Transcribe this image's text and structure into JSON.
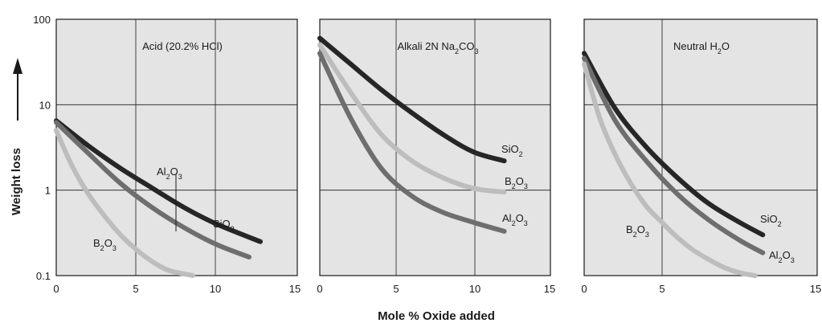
{
  "chart_data": {
    "type": "line",
    "y_axis_label": "Weight loss",
    "x_axis_label": "Mole % Oxide added",
    "y_scale": "log",
    "y_ticks": [
      "100",
      "10",
      "1",
      "0.1"
    ],
    "ylim": [
      0.1,
      100
    ],
    "grid": true,
    "colors": {
      "SiO2": "#262626",
      "Al2O3": "#6e6e6e",
      "B2O3": "#bdbdbd",
      "panel_bg": "#e4e4e4"
    },
    "panels": [
      {
        "title": "Acid (20.2% HCl)",
        "x_ticks": [
          "0",
          "5",
          "10",
          "15"
        ],
        "xlim": [
          0,
          15
        ],
        "series": [
          {
            "name": "SiO2",
            "name_main": "SiO",
            "name_sub": "2",
            "color": "#262626",
            "x": [
              0,
              2,
              4,
              6,
              8,
              10,
              12.7
            ],
            "y": [
              6.5,
              3.3,
              1.8,
              1.05,
              0.62,
              0.4,
              0.25
            ]
          },
          {
            "name": "Al2O3",
            "name_main": "Al",
            "name_sub": "2",
            "name_main2": "O",
            "name_sub2": "3",
            "color": "#6e6e6e",
            "x": [
              0,
              2,
              4,
              6,
              8,
              10,
              12
            ],
            "y": [
              6.2,
              2.7,
              1.2,
              0.62,
              0.36,
              0.23,
              0.165
            ]
          },
          {
            "name": "B2O3",
            "name_main": "B",
            "name_sub": "2",
            "name_main2": "O",
            "name_sub2": "3",
            "color": "#bdbdbd",
            "x": [
              0,
              1,
              2,
              3,
              4,
              5,
              6,
              7,
              8.5
            ],
            "y": [
              5.0,
              1.9,
              0.9,
              0.5,
              0.3,
              0.2,
              0.145,
              0.115,
              0.1
            ]
          }
        ]
      },
      {
        "title": "Alkali 2N Na2CO3",
        "title_parts": [
          "Alkali 2N Na",
          "2",
          "CO",
          "3"
        ],
        "x_ticks": [
          "0",
          "5",
          "10",
          "15"
        ],
        "xlim": [
          0,
          15
        ],
        "series": [
          {
            "name": "SiO2",
            "name_main": "SiO",
            "name_sub": "2",
            "color": "#262626",
            "x": [
              0,
              2,
              4,
              6,
              8,
              10,
              12
            ],
            "y": [
              60,
              30,
              15,
              8,
              4.5,
              2.8,
              2.2
            ]
          },
          {
            "name": "B2O3",
            "name_main": "B",
            "name_sub": "2",
            "name_main2": "O",
            "name_sub2": "3",
            "color": "#bdbdbd",
            "x": [
              0,
              2,
              4,
              6,
              8,
              10,
              12
            ],
            "y": [
              50,
              14,
              4.5,
              2.2,
              1.4,
              1.05,
              0.95
            ]
          },
          {
            "name": "Al2O3",
            "name_main": "Al",
            "name_sub": "2",
            "name_main2": "O",
            "name_sub2": "3",
            "color": "#6e6e6e",
            "x": [
              0,
              2,
              4,
              6,
              8,
              10,
              12
            ],
            "y": [
              40,
              7,
              1.8,
              0.85,
              0.55,
              0.42,
              0.33
            ]
          }
        ]
      },
      {
        "title": "Neutral H2O",
        "title_parts": [
          "Neutral H",
          "2",
          "O",
          ""
        ],
        "x_ticks": [
          "0",
          "5",
          "15"
        ],
        "xlim": [
          0,
          15
        ],
        "series": [
          {
            "name": "SiO2",
            "name_main": "SiO",
            "name_sub": "2",
            "color": "#262626",
            "x": [
              0,
              2,
              4,
              6,
              8,
              10,
              11.5
            ],
            "y": [
              40,
              9,
              3.2,
              1.4,
              0.7,
              0.42,
              0.3
            ]
          },
          {
            "name": "Al2O3",
            "name_main": "Al",
            "name_sub": "2",
            "name_main2": "O",
            "name_sub2": "3",
            "color": "#6e6e6e",
            "x": [
              0,
              2,
              4,
              6,
              8,
              10,
              11.5
            ],
            "y": [
              35,
              6.5,
              2.2,
              0.9,
              0.45,
              0.26,
              0.185
            ]
          },
          {
            "name": "B2O3",
            "name_main": "B",
            "name_sub": "2",
            "name_main2": "O",
            "name_sub2": "3",
            "color": "#bdbdbd",
            "x": [
              0,
              1,
              2,
              3,
              4,
              5,
              6,
              7,
              8,
              9,
              10,
              11
            ],
            "y": [
              30,
              7,
              2.6,
              1.2,
              0.65,
              0.42,
              0.28,
              0.2,
              0.155,
              0.125,
              0.108,
              0.1
            ]
          }
        ]
      }
    ]
  }
}
